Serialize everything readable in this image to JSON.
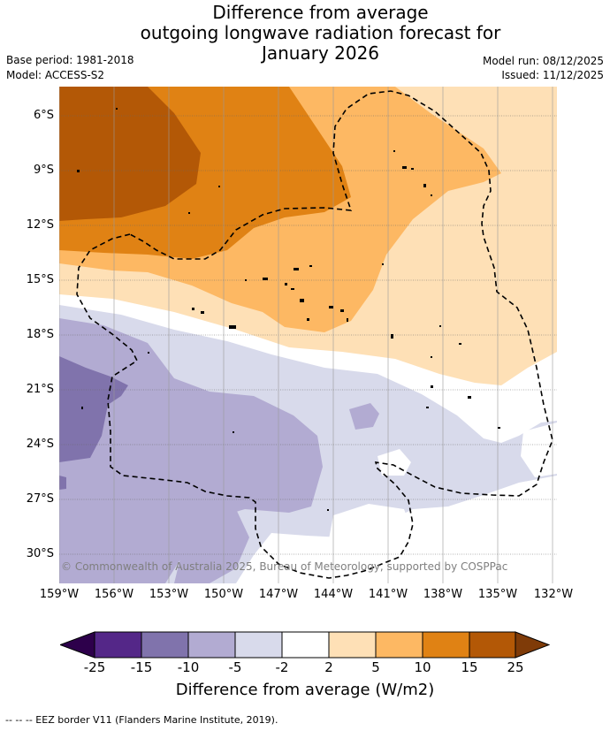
{
  "title": {
    "line1": "Difference from average",
    "line2": "outgoing longwave radiation forecast for",
    "line3": "January 2026"
  },
  "meta": {
    "base_period": "Base period: 1981-2018",
    "model": "Model: ACCESS-S2",
    "model_run": "Model run: 08/12/2025",
    "issued": "Issued: 11/12/2025"
  },
  "map": {
    "lat_labels": [
      "6°S",
      "9°S",
      "12°S",
      "15°S",
      "18°S",
      "21°S",
      "24°S",
      "27°S",
      "30°S"
    ],
    "lon_labels": [
      "159°W",
      "156°W",
      "153°W",
      "150°W",
      "147°W",
      "144°W",
      "141°W",
      "138°W",
      "135°W",
      "132°W"
    ],
    "copyright": "© Commonwealth of Australia 2025, Bureau of Meteorology, supported by COSPPac",
    "colors": {
      "d25_plus": "#b35806",
      "d15_25": "#e08214",
      "d5_10": "#fdb863",
      "d2_5": "#fee0b6",
      "neutral": "#ffffff",
      "n2_5": "#d8daeb",
      "n5_10": "#b2abd2",
      "n10_15": "#8073ac",
      "n15_25": "#542788"
    }
  },
  "colorbar": {
    "ticks": [
      "-25",
      "-15",
      "-10",
      "-5",
      "-2",
      "2",
      "5",
      "10",
      "15",
      "25"
    ],
    "colors": [
      "#2d004b",
      "#542788",
      "#8073ac",
      "#b2abd2",
      "#d8daeb",
      "#ffffff",
      "#fee0b6",
      "#fdb863",
      "#e08214",
      "#b35806",
      "#7f3b08"
    ],
    "title": "Difference from average (W/m2)"
  },
  "footer": {
    "eez_note": "--  --  -- EEZ border V11 (Flanders Marine Institute, 2019)."
  }
}
